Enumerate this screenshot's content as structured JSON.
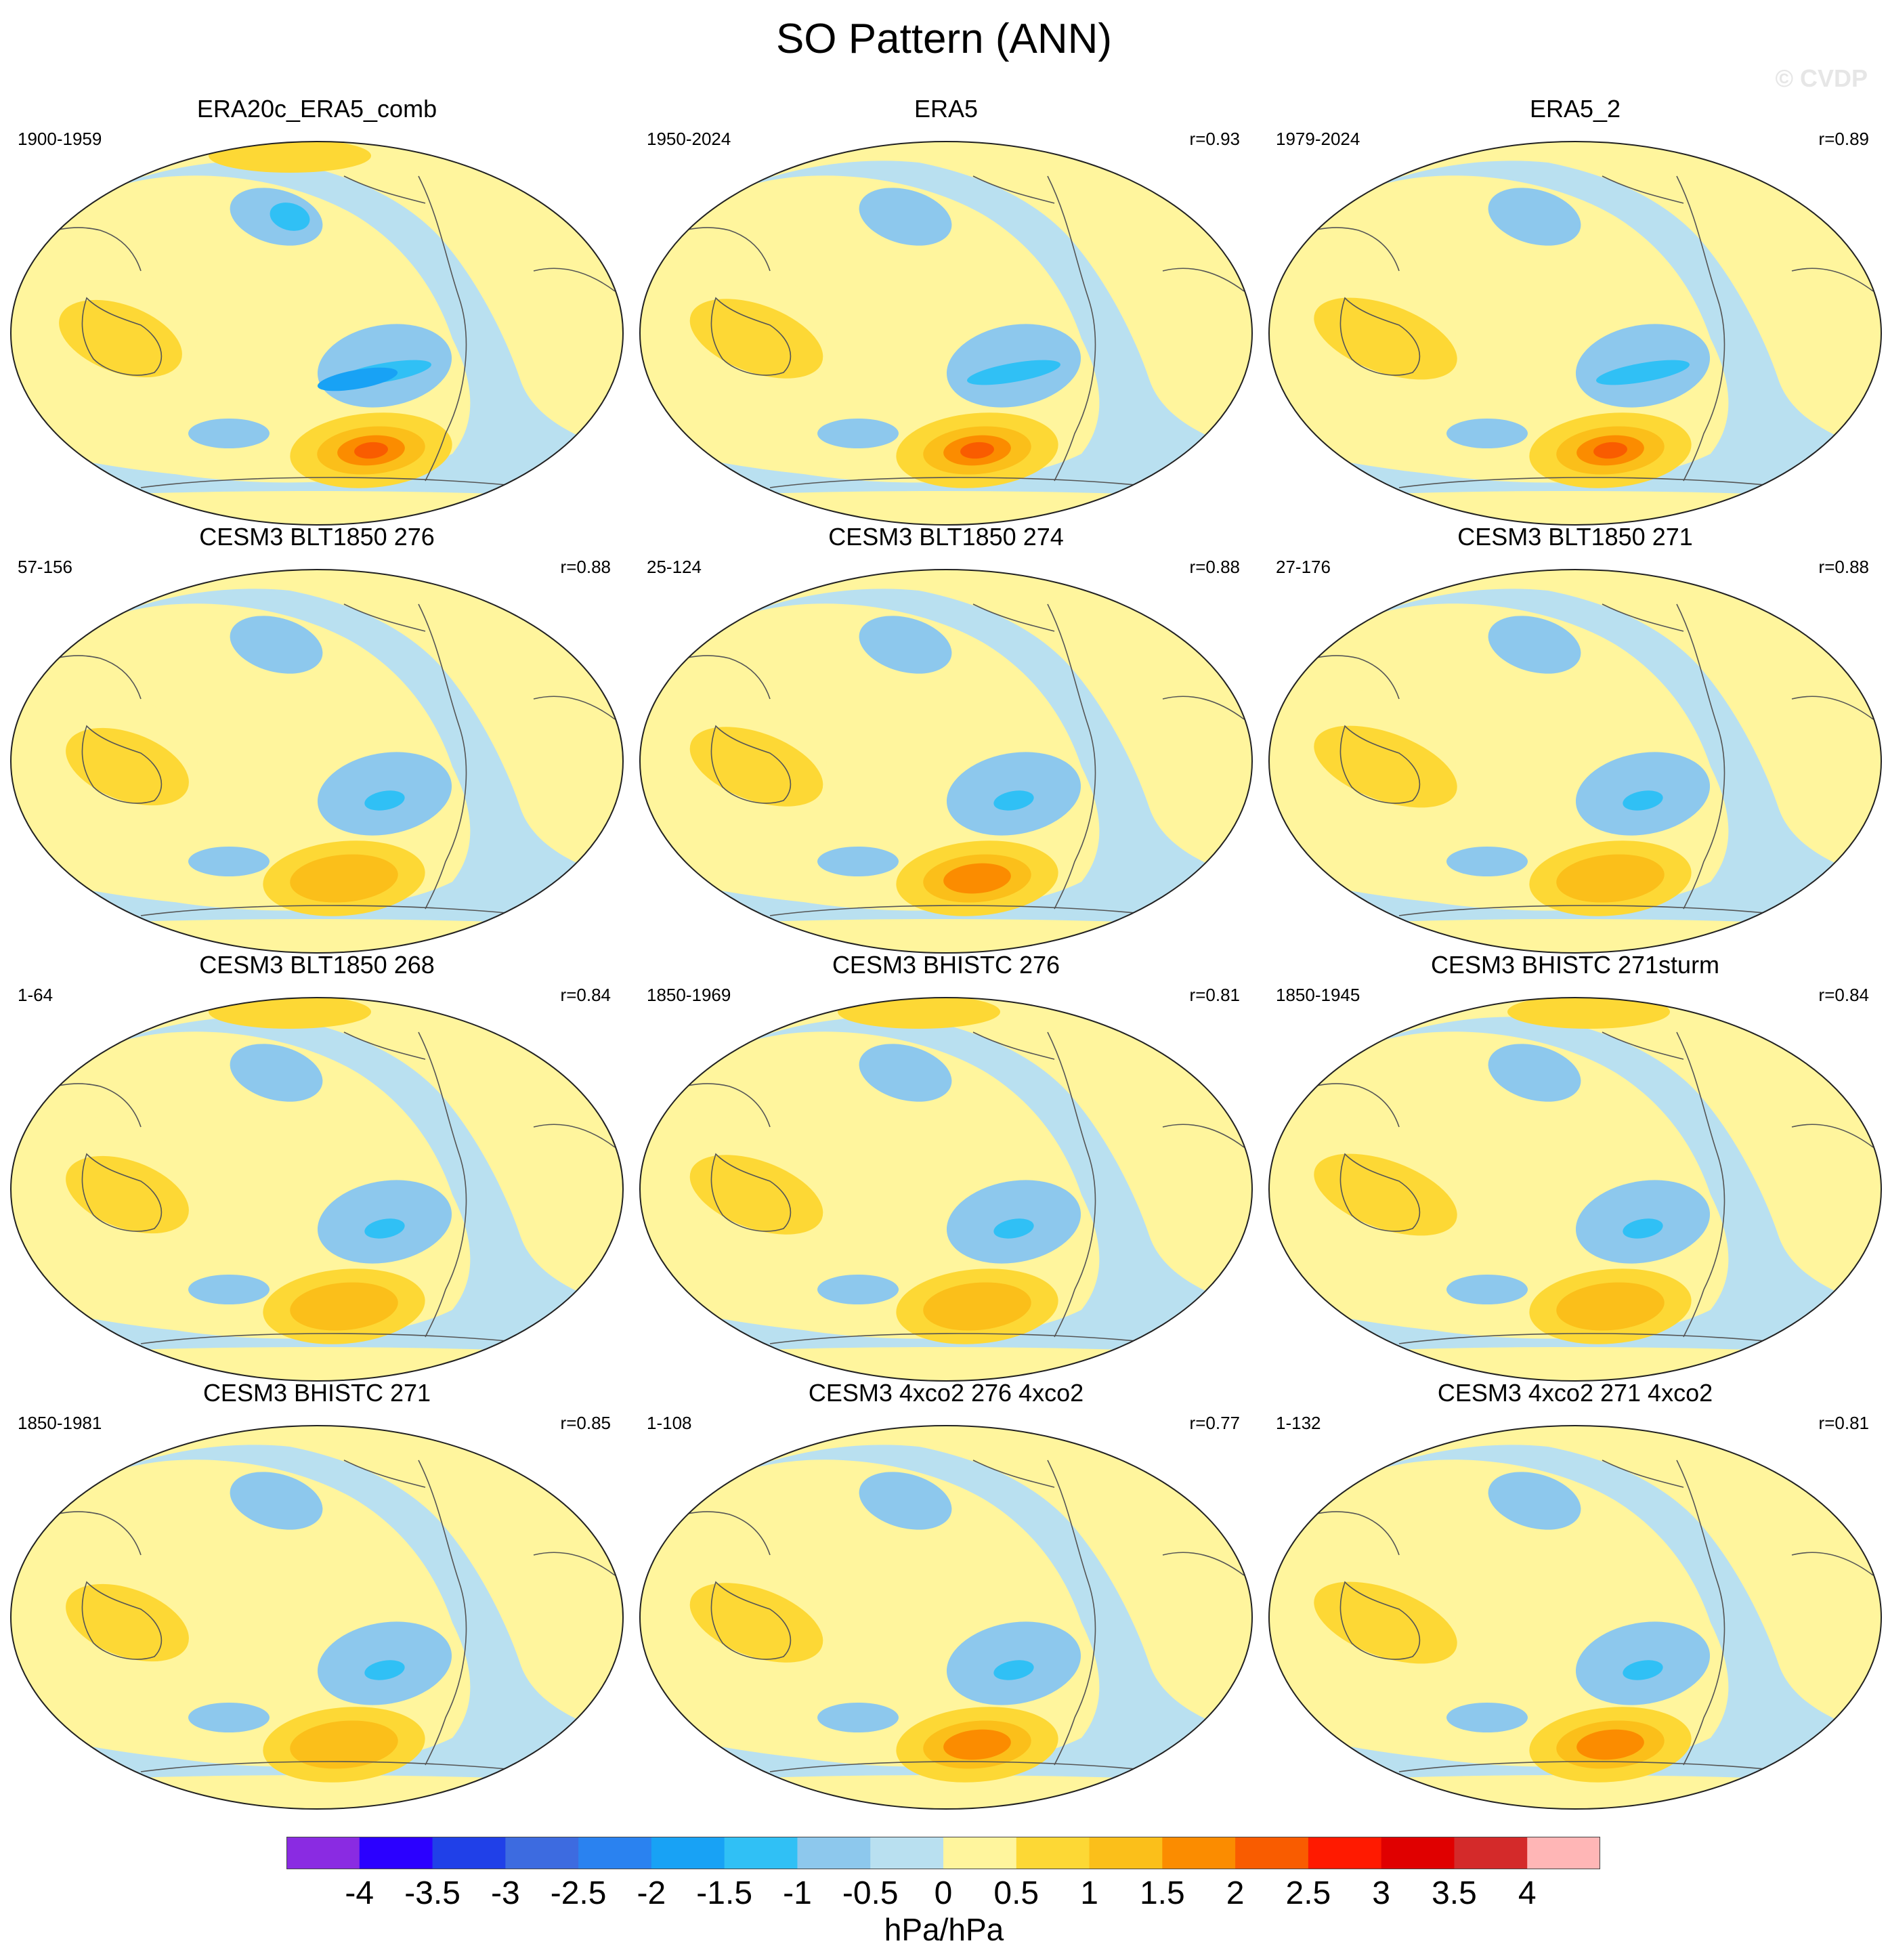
{
  "figure": {
    "title": "SO Pattern (ANN)",
    "watermark": "© CVDP"
  },
  "chart_data": {
    "type": "heatmap",
    "projection": "Robinson, Pacific-centered",
    "panels": [
      {
        "title": "ERA20c_ERA5_comb",
        "years": "1900-1959",
        "corr": ""
      },
      {
        "title": "ERA5",
        "years": "1950-2024",
        "corr": "r=0.93"
      },
      {
        "title": "ERA5_2",
        "years": "1979-2024",
        "corr": "r=0.89"
      },
      {
        "title": "CESM3 BLT1850 276",
        "years": "57-156",
        "corr": "r=0.88"
      },
      {
        "title": "CESM3 BLT1850 274",
        "years": "25-124",
        "corr": "r=0.88"
      },
      {
        "title": "CESM3 BLT1850 271",
        "years": "27-176",
        "corr": "r=0.88"
      },
      {
        "title": "CESM3 BLT1850 268",
        "years": "1-64",
        "corr": "r=0.84"
      },
      {
        "title": "CESM3 BHISTC 276",
        "years": "1850-1969",
        "corr": "r=0.81"
      },
      {
        "title": "CESM3 BHISTC 271sturm",
        "years": "1850-1945",
        "corr": "r=0.84"
      },
      {
        "title": "CESM3 BHISTC 271",
        "years": "1850-1981",
        "corr": "r=0.85"
      },
      {
        "title": "CESM3 4xco2 276 4xco2",
        "years": "1-108",
        "corr": "r=0.77"
      },
      {
        "title": "CESM3 4xco2 271 4xco2",
        "years": "1-132",
        "corr": "r=0.81"
      }
    ],
    "colorbar": {
      "units": "hPa/hPa",
      "levels": [
        "-4",
        "-3.5",
        "-3",
        "-2.5",
        "-2",
        "-1.5",
        "-1",
        "-0.5",
        "0",
        "0.5",
        "1",
        "1.5",
        "2",
        "2.5",
        "3",
        "3.5",
        "4"
      ],
      "colors": [
        "#8a2be2",
        "#2b00ff",
        "#2040e8",
        "#3d6be0",
        "#2a82f0",
        "#18a2f5",
        "#30c0f5",
        "#8dc8ed",
        "#b9e0f0",
        "#fff59d",
        "#fdd835",
        "#fbbf1a",
        "#fb8c00",
        "#f95c00",
        "#ff1a00",
        "#e00000",
        "#d42a2a",
        "#ffb6b6"
      ]
    }
  }
}
